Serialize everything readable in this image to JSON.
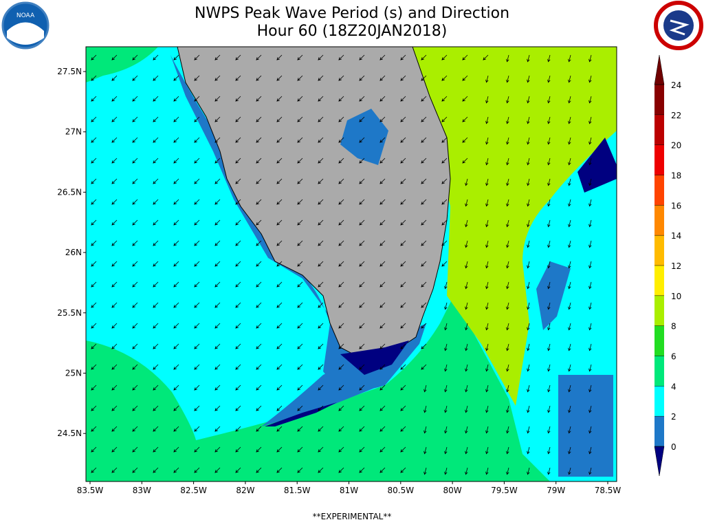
{
  "header": {
    "title": "NWPS Peak Wave Period (s) and Direction",
    "subtitle": "Hour 60 (18Z20JAN2018)",
    "left_logo": "NOAA"
  },
  "map": {
    "lat_labels": [
      "27.5N",
      "27N",
      "26.5N",
      "26N",
      "25.5N",
      "25N",
      "24.5N"
    ],
    "lon_labels": [
      "83.5W",
      "83W",
      "82.5W",
      "82W",
      "81.5W",
      "81W",
      "80.5W",
      "80W",
      "79.5W",
      "79W",
      "78.5W"
    ]
  },
  "colorbar": {
    "ticks": [
      0,
      2,
      4,
      6,
      8,
      10,
      12,
      14,
      16,
      18,
      20,
      22,
      24
    ],
    "under_color": "#000080",
    "over_color": "#700000",
    "colors": [
      "#1e78c8",
      "#00ffff",
      "#00e87a",
      "#22dd22",
      "#aaee00",
      "#ffee00",
      "#ffbb00",
      "#ff8800",
      "#ff4400",
      "#ee0000",
      "#bb0000",
      "#880000"
    ]
  },
  "footer": {
    "note": "**EXPERIMENTAL**"
  }
}
